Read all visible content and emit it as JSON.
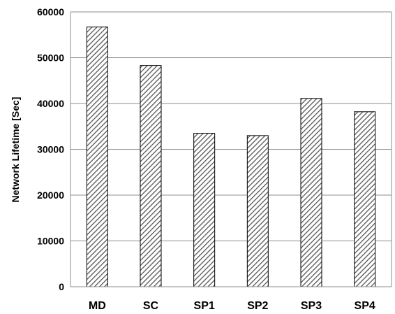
{
  "chart_data": {
    "type": "bar",
    "title": "",
    "xlabel": "",
    "ylabel": "Network Lifetime [Sec]",
    "categories": [
      "MD",
      "SC",
      "SP1",
      "SP2",
      "SP3",
      "SP4"
    ],
    "values": [
      56700,
      48300,
      33500,
      33000,
      41100,
      38200
    ],
    "ylim": [
      0,
      60000
    ],
    "yticks": [
      0,
      10000,
      20000,
      30000,
      40000,
      50000,
      60000
    ],
    "grid": "horizontal",
    "bar_fill": "diagonal-hatch",
    "colors": {
      "bar_stroke": "#000000",
      "hatch": "#555555",
      "grid": "#8c8c8c"
    }
  }
}
